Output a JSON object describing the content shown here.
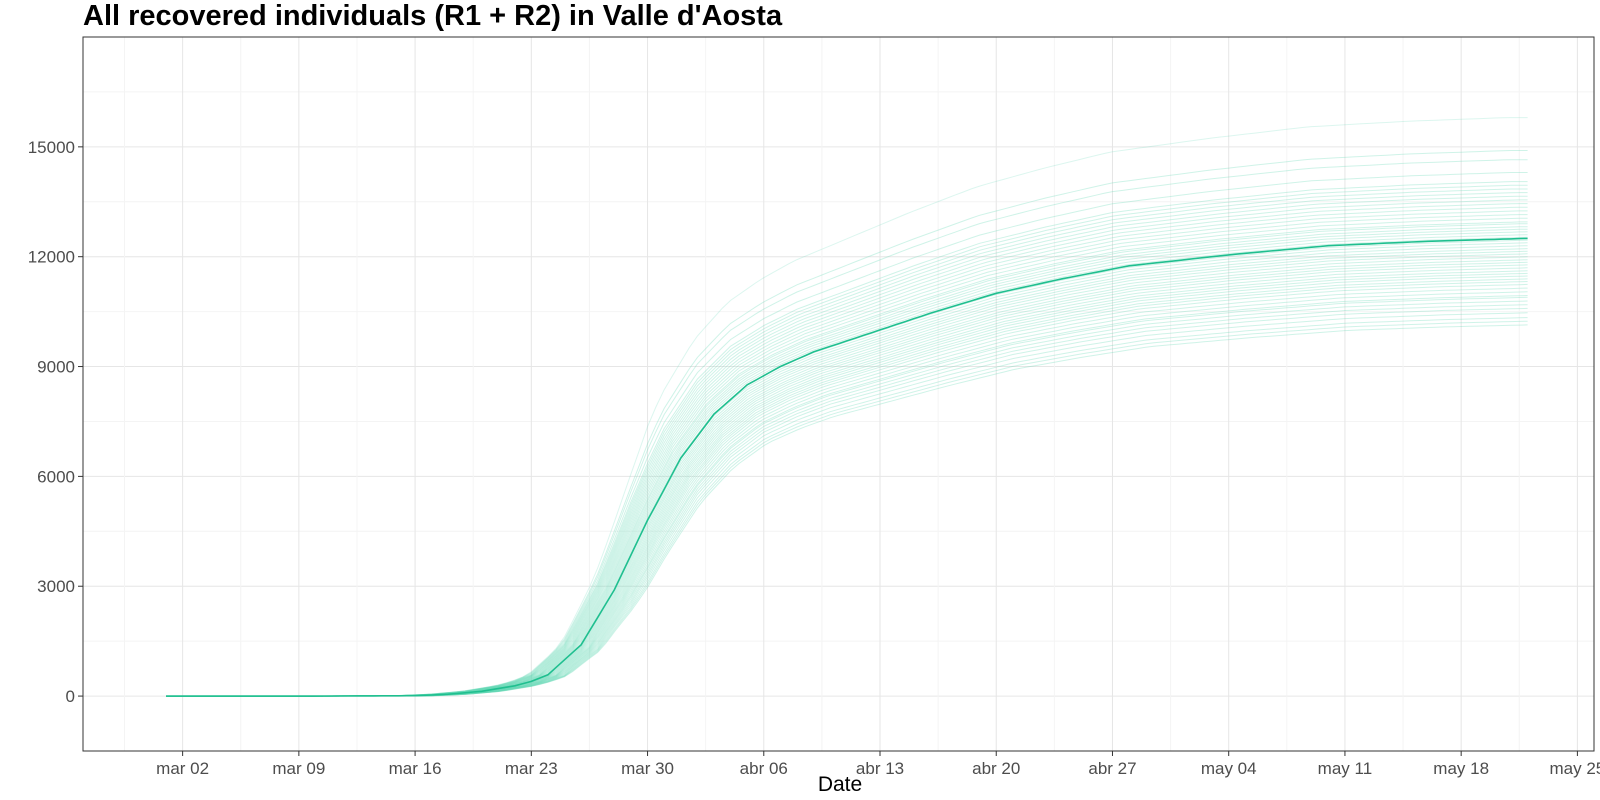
{
  "chart_data": {
    "type": "line",
    "title": "All recovered individuals (R1 + R2) in  Valle d'Aosta",
    "xlabel": "Date",
    "ylabel": "",
    "x_axis": {
      "scale": "date",
      "range": [
        "2020-02-25",
        "2020-05-26"
      ],
      "tick_values": [
        "2020-03-02",
        "2020-03-09",
        "2020-03-16",
        "2020-03-23",
        "2020-03-30",
        "2020-04-06",
        "2020-04-13",
        "2020-04-20",
        "2020-04-27",
        "2020-05-04",
        "2020-05-11",
        "2020-05-18",
        "2020-05-25"
      ],
      "tick_labels": [
        "mar 02",
        "mar 09",
        "mar 16",
        "mar 23",
        "mar 30",
        "abr 06",
        "abr 13",
        "abr 20",
        "abr 27",
        "may 04",
        "may 11",
        "may 18",
        "may 25"
      ]
    },
    "y_axis": {
      "range": [
        -1500,
        18000
      ],
      "tick_values": [
        0,
        3000,
        6000,
        9000,
        12000,
        15000
      ],
      "tick_labels": [
        "0",
        "3000",
        "6000",
        "9000",
        "12000",
        "15000"
      ]
    },
    "grid": true,
    "legend": "none",
    "colors": {
      "main_line": "#1fbf8f",
      "ensemble_lines": "#5fd6b4",
      "panel_border": "#333333",
      "grid_major": "#e6e6e6",
      "grid_minor": "#f4f4f4"
    },
    "series": [
      {
        "role": "central",
        "x": [
          "2020-03-01",
          "2020-03-10",
          "2020-03-16",
          "2020-03-18",
          "2020-03-20",
          "2020-03-22",
          "2020-03-23",
          "2020-03-24",
          "2020-03-26",
          "2020-03-28",
          "2020-03-30",
          "2020-04-01",
          "2020-04-03",
          "2020-04-05",
          "2020-04-07",
          "2020-04-09",
          "2020-04-12",
          "2020-04-16",
          "2020-04-20",
          "2020-04-24",
          "2020-04-28",
          "2020-05-04",
          "2020-05-10",
          "2020-05-16",
          "2020-05-22"
        ],
        "y": [
          0,
          0,
          10,
          50,
          130,
          280,
          400,
          580,
          1400,
          2900,
          4800,
          6500,
          7700,
          8500,
          9000,
          9400,
          9850,
          10450,
          11000,
          11400,
          11750,
          12050,
          12300,
          12420,
          12500
        ]
      }
    ],
    "ensemble": {
      "note_count": 50,
      "final_values_2020_05_22": [
        10150,
        10250,
        10350,
        10480,
        10600,
        10700,
        10800,
        10900,
        10950,
        11050,
        11150,
        11250,
        11330,
        11400,
        11480,
        11550,
        11620,
        11700,
        11780,
        11850,
        11920,
        12000,
        12080,
        12150,
        12220,
        12300,
        12380,
        12450,
        12530,
        12600,
        12680,
        12750,
        12820,
        12900,
        12950,
        13050,
        13150,
        13250,
        13350,
        13450,
        13550,
        13650,
        13750,
        13850,
        13950,
        14050,
        14300,
        14650,
        14900,
        15800
      ]
    }
  }
}
